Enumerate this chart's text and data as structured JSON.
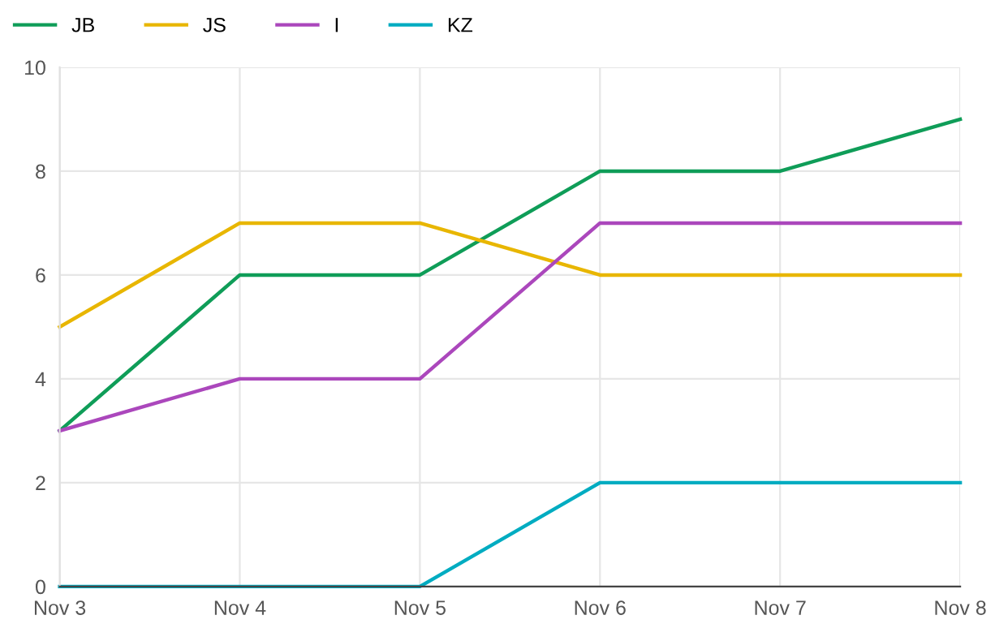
{
  "chart_data": {
    "type": "line",
    "categories": [
      "Nov 3",
      "Nov 4",
      "Nov 5",
      "Nov 6",
      "Nov 7",
      "Nov 8"
    ],
    "series": [
      {
        "name": "JB",
        "color": "#0f9d58",
        "values": [
          3,
          6,
          6,
          8,
          8,
          9
        ]
      },
      {
        "name": "JS",
        "color": "#e8b600",
        "values": [
          5,
          7,
          7,
          6,
          6,
          6
        ]
      },
      {
        "name": "I",
        "color": "#ab47bc",
        "values": [
          3,
          4,
          4,
          7,
          7,
          7
        ]
      },
      {
        "name": "KZ",
        "color": "#00acc1",
        "values": [
          0,
          0,
          0,
          2,
          2,
          2
        ]
      }
    ],
    "ylim": [
      0,
      10
    ],
    "yticks": [
      0,
      2,
      4,
      6,
      8,
      10
    ],
    "grid": true,
    "legend": "top left",
    "marker": "none",
    "line_style": "solid"
  }
}
